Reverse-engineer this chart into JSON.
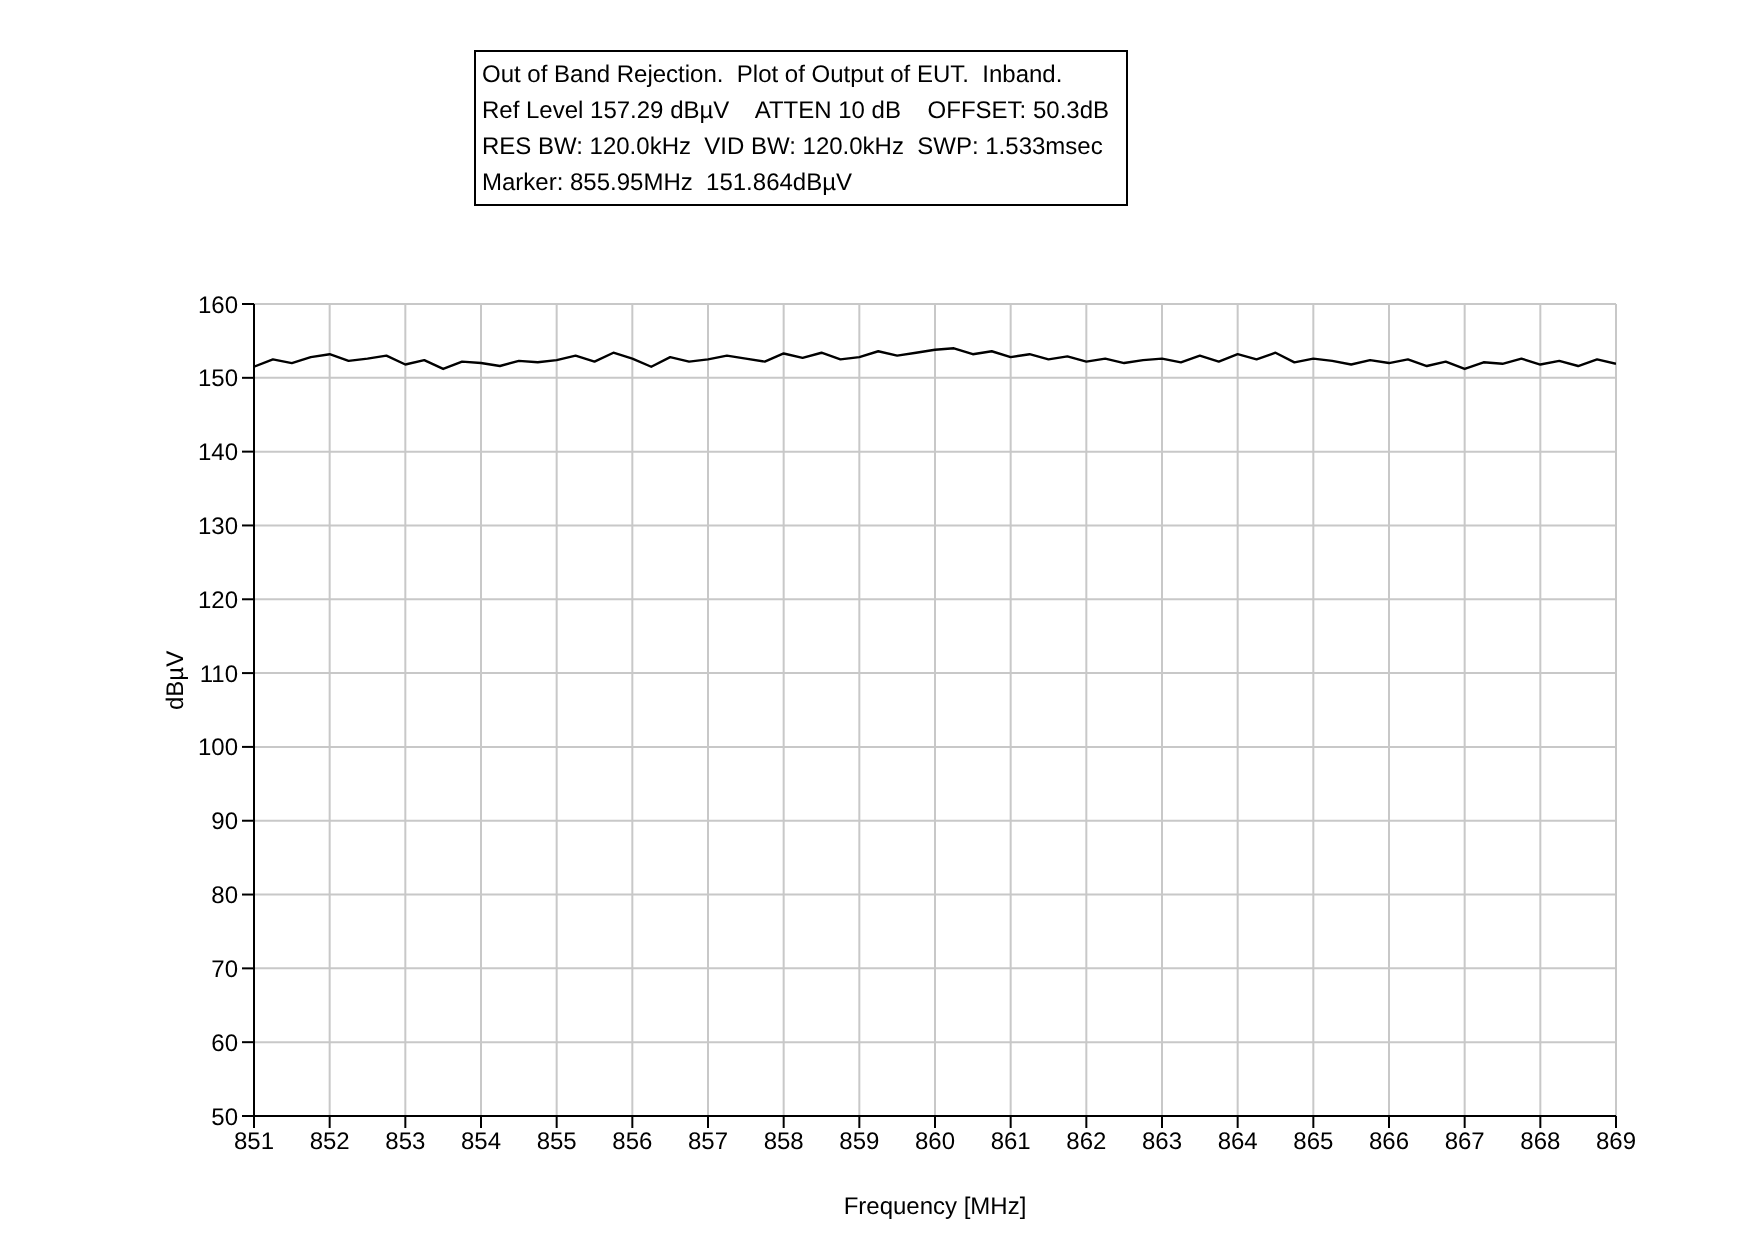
{
  "chart_data": {
    "type": "line",
    "title": "Out of Band Rejection.  Plot of Output of EUT.  Inband.",
    "annotations": [
      "Ref Level 157.29 dBµV    ATTEN 10 dB    OFFSET: 50.3dB",
      "RES BW: 120.0kHz  VID BW: 120.0kHz  SWP: 1.533msec",
      "Marker: 855.95MHz  151.864dBµV"
    ],
    "xlabel": "Frequency [MHz]",
    "ylabel": "dBµV",
    "x": [
      851,
      851.25,
      851.5,
      851.75,
      852,
      852.25,
      852.5,
      852.75,
      853,
      853.25,
      853.5,
      853.75,
      854,
      854.25,
      854.5,
      854.75,
      855,
      855.25,
      855.5,
      855.75,
      856,
      856.25,
      856.5,
      856.75,
      857,
      857.25,
      857.5,
      857.75,
      858,
      858.25,
      858.5,
      858.75,
      859,
      859.25,
      859.5,
      859.75,
      860,
      860.25,
      860.5,
      860.75,
      861,
      861.25,
      861.5,
      861.75,
      862,
      862.25,
      862.5,
      862.75,
      863,
      863.25,
      863.5,
      863.75,
      864,
      864.25,
      864.5,
      864.75,
      865,
      865.25,
      865.5,
      865.75,
      866,
      866.25,
      866.5,
      866.75,
      867,
      867.25,
      867.5,
      867.75,
      868,
      868.25,
      868.5,
      868.75,
      869
    ],
    "series": [
      {
        "color": "#000000",
        "values": [
          151.5,
          152.5,
          152,
          152.8,
          153.2,
          152.3,
          152.6,
          153,
          151.8,
          152.4,
          151.2,
          152.2,
          152,
          151.6,
          152.3,
          152.1,
          152.4,
          153,
          152.2,
          153.4,
          152.6,
          151.5,
          152.8,
          152.2,
          152.5,
          153,
          152.6,
          152.2,
          153.3,
          152.7,
          153.4,
          152.5,
          152.8,
          153.6,
          153,
          153.4,
          153.8,
          154,
          153.2,
          153.6,
          152.8,
          153.2,
          152.5,
          152.9,
          152.2,
          152.6,
          152,
          152.4,
          152.6,
          152.1,
          153,
          152.2,
          153.2,
          152.5,
          153.4,
          152.1,
          152.6,
          152.3,
          151.8,
          152.4,
          152,
          152.5,
          151.6,
          152.2,
          151.2,
          152.1,
          151.9,
          152.6,
          151.8,
          152.3,
          151.6,
          152.5,
          151.9
        ]
      }
    ],
    "xlim": [
      851,
      869
    ],
    "xticks": [
      851,
      852,
      853,
      854,
      855,
      856,
      857,
      858,
      859,
      860,
      861,
      862,
      863,
      864,
      865,
      866,
      867,
      868,
      869
    ],
    "ylim": [
      50,
      160
    ],
    "yticks": [
      50,
      60,
      70,
      80,
      90,
      100,
      110,
      120,
      130,
      140,
      150,
      160
    ],
    "grid": true,
    "legend": false,
    "marker": "none",
    "line_style": "solid"
  }
}
